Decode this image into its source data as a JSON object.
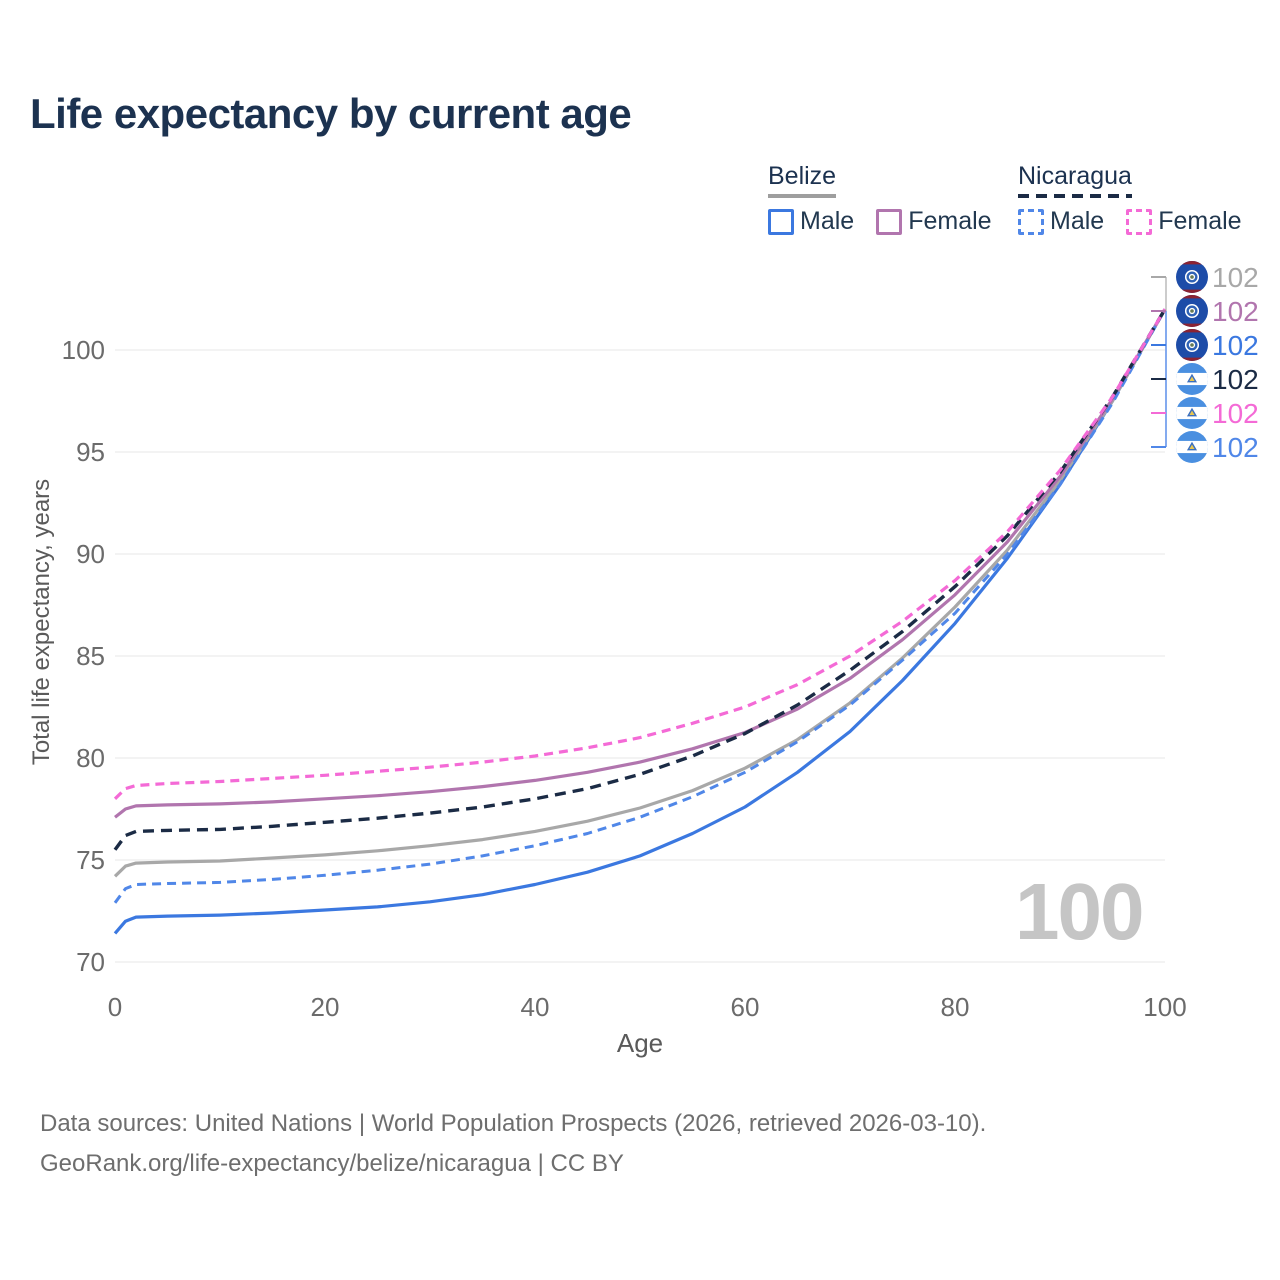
{
  "title": "Life expectancy by current age",
  "legend": {
    "groups": [
      {
        "country": "Belize",
        "line_style": "solid",
        "items": [
          {
            "label": "Male",
            "color": "#3b78e0"
          },
          {
            "label": "Female",
            "color": "#b175ae"
          }
        ]
      },
      {
        "country": "Nicaragua",
        "line_style": "dashed",
        "items": [
          {
            "label": "Male",
            "color": "#5087e8"
          },
          {
            "label": "Female",
            "color": "#f46ad6"
          }
        ]
      }
    ]
  },
  "chart_data": {
    "type": "line",
    "title": "Life expectancy by current age",
    "xlabel": "Age",
    "ylabel": "Total life expectancy, years",
    "xlim": [
      0,
      100
    ],
    "ylim": [
      70,
      102
    ],
    "x_ticks": [
      0,
      20,
      40,
      60,
      80,
      100
    ],
    "y_ticks": [
      70,
      75,
      80,
      85,
      90,
      95,
      100
    ],
    "grid": "horizontal",
    "legend_position": "top-right",
    "watermark": "100",
    "x": [
      0,
      1,
      2,
      5,
      10,
      15,
      20,
      25,
      30,
      35,
      40,
      45,
      50,
      55,
      60,
      65,
      70,
      75,
      80,
      85,
      90,
      95,
      100
    ],
    "series": [
      {
        "key": "belize-male",
        "name": "Belize Male",
        "country": "Belize",
        "sex": "male",
        "color": "#3b78e0",
        "dash": "",
        "width": 3.2,
        "end_label": "102",
        "values": [
          71.4,
          72.0,
          72.2,
          72.25,
          72.3,
          72.4,
          72.55,
          72.7,
          72.95,
          73.3,
          73.8,
          74.4,
          75.2,
          76.3,
          77.6,
          79.3,
          81.3,
          83.8,
          86.6,
          89.8,
          93.4,
          97.5,
          102
        ]
      },
      {
        "key": "belize-total",
        "name": "Belize",
        "country": "Belize",
        "sex": "total",
        "color": "#a8a8a8",
        "dash": "",
        "width": 3.2,
        "end_label": "102",
        "values": [
          74.2,
          74.7,
          74.85,
          74.9,
          74.95,
          75.1,
          75.25,
          75.45,
          75.7,
          76.0,
          76.4,
          76.9,
          77.55,
          78.4,
          79.5,
          80.9,
          82.7,
          84.9,
          87.4,
          90.2,
          93.6,
          97.5,
          102
        ]
      },
      {
        "key": "belize-female",
        "name": "Belize Female",
        "country": "Belize",
        "sex": "female",
        "color": "#b175ae",
        "dash": "",
        "width": 3.2,
        "end_label": "102",
        "values": [
          77.1,
          77.5,
          77.65,
          77.7,
          77.75,
          77.85,
          78.0,
          78.15,
          78.35,
          78.6,
          78.9,
          79.3,
          79.8,
          80.45,
          81.25,
          82.4,
          83.9,
          85.8,
          88.0,
          90.6,
          93.8,
          97.6,
          102
        ]
      },
      {
        "key": "nicaragua-male",
        "name": "Nicaragua Male",
        "country": "Nicaragua",
        "sex": "male",
        "color": "#5087e8",
        "dash": "9 6",
        "width": 3,
        "end_label": "102",
        "values": [
          72.9,
          73.6,
          73.8,
          73.85,
          73.9,
          74.05,
          74.25,
          74.5,
          74.8,
          75.2,
          75.7,
          76.3,
          77.1,
          78.1,
          79.3,
          80.8,
          82.6,
          84.8,
          87.1,
          90.0,
          93.4,
          97.4,
          102
        ]
      },
      {
        "key": "nicaragua-total",
        "name": "Nicaragua",
        "country": "Nicaragua",
        "sex": "total",
        "color": "#1b2b45",
        "dash": "11 7",
        "width": 3.4,
        "end_label": "102",
        "values": [
          75.5,
          76.2,
          76.4,
          76.45,
          76.5,
          76.65,
          76.85,
          77.05,
          77.3,
          77.6,
          78.0,
          78.5,
          79.2,
          80.1,
          81.2,
          82.6,
          84.3,
          86.2,
          88.4,
          90.9,
          94.0,
          97.7,
          102
        ]
      },
      {
        "key": "nicaragua-female",
        "name": "Nicaragua Female",
        "country": "Nicaragua",
        "sex": "female",
        "color": "#f46ad6",
        "dash": "9 6",
        "width": 3.2,
        "end_label": "102",
        "values": [
          78.0,
          78.5,
          78.65,
          78.75,
          78.85,
          79.0,
          79.15,
          79.35,
          79.55,
          79.8,
          80.1,
          80.5,
          81.0,
          81.7,
          82.5,
          83.6,
          85.0,
          86.7,
          88.7,
          91.1,
          94.1,
          97.7,
          102
        ]
      }
    ],
    "label_order": [
      "belize-total",
      "belize-female",
      "belize-male",
      "nicaragua-total",
      "nicaragua-female",
      "nicaragua-male"
    ]
  },
  "footer": {
    "line1": "Data sources: United Nations | World Population Prospects (2026, retrieved 2026-03-10).",
    "line2": "GeoRank.org/life-expectancy/belize/nicaragua | CC BY"
  }
}
